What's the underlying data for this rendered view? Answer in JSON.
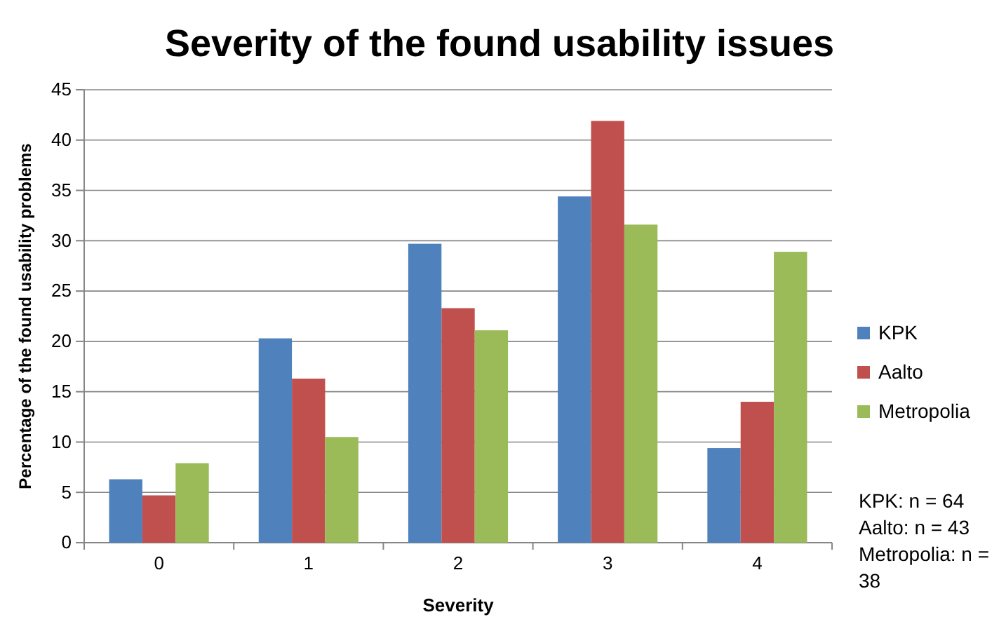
{
  "chart_data": {
    "type": "bar",
    "title": "Severity of the found usability issues",
    "xlabel": "Severity",
    "ylabel": "Percentage of the found usability problems",
    "categories": [
      "0",
      "1",
      "2",
      "3",
      "4"
    ],
    "series": [
      {
        "name": "KPK",
        "color": "#4f81bd",
        "values": [
          6.3,
          20.3,
          29.7,
          34.4,
          9.4
        ]
      },
      {
        "name": "Aalto",
        "color": "#c0504d",
        "values": [
          4.7,
          16.3,
          23.3,
          41.9,
          14.0
        ]
      },
      {
        "name": "Metropolia",
        "color": "#9bbb59",
        "values": [
          7.9,
          10.5,
          21.1,
          31.6,
          28.9
        ]
      }
    ],
    "ylim": [
      0,
      45
    ],
    "yticks": [
      0,
      5,
      10,
      15,
      20,
      25,
      30,
      35,
      40,
      45
    ],
    "grid": "y",
    "legend": "right",
    "annotations": [
      "KPK: n = 64",
      "Aalto: n = 43",
      "Metropolia: n = 38"
    ]
  }
}
